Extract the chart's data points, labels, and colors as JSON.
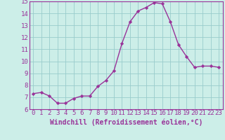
{
  "x": [
    0,
    1,
    2,
    3,
    4,
    5,
    6,
    7,
    8,
    9,
    10,
    11,
    12,
    13,
    14,
    15,
    16,
    17,
    18,
    19,
    20,
    21,
    22,
    23
  ],
  "y": [
    7.3,
    7.4,
    7.1,
    6.5,
    6.5,
    6.9,
    7.1,
    7.1,
    7.9,
    8.4,
    9.2,
    11.5,
    13.3,
    14.2,
    14.5,
    14.9,
    14.8,
    13.3,
    11.4,
    10.4,
    9.5,
    9.6,
    9.6,
    9.5
  ],
  "line_color": "#993399",
  "marker": "D",
  "marker_size": 2.2,
  "bg_color": "#cceee8",
  "grid_color": "#99cccc",
  "xlabel": "Windchill (Refroidissement éolien,°C)",
  "ylim": [
    6,
    15
  ],
  "xlim_min": -0.5,
  "xlim_max": 23.5,
  "yticks": [
    6,
    7,
    8,
    9,
    10,
    11,
    12,
    13,
    14,
    15
  ],
  "xticks": [
    0,
    1,
    2,
    3,
    4,
    5,
    6,
    7,
    8,
    9,
    10,
    11,
    12,
    13,
    14,
    15,
    16,
    17,
    18,
    19,
    20,
    21,
    22,
    23
  ],
  "tick_color": "#993399",
  "tick_fontsize": 6.5,
  "xlabel_fontsize": 7.0,
  "spine_color": "#993399",
  "linewidth": 1.0
}
